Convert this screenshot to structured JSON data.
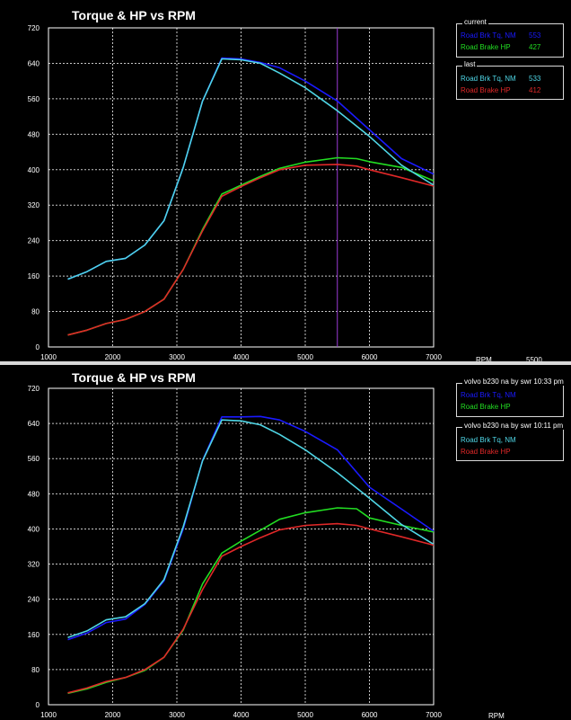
{
  "chart_data": [
    {
      "type": "line",
      "title": "Torque & HP vs RPM",
      "xlabel": "RPM",
      "cursor_rpm": 5500,
      "cursor_readout": "5500",
      "xlim": [
        1000,
        7000
      ],
      "ylim": [
        0,
        720
      ],
      "x_ticks": [
        1000,
        2000,
        3000,
        4000,
        5000,
        6000,
        7000
      ],
      "y_ticks": [
        0,
        80,
        160,
        240,
        320,
        400,
        480,
        560,
        640,
        720
      ],
      "grid": true,
      "legend": {
        "placement": "right",
        "groups": [
          {
            "title": "current",
            "entries": [
              {
                "label": "Road Brk Tq, NM",
                "value": "553",
                "color": "#1a1aff"
              },
              {
                "label": "Road Brake HP",
                "value": "427",
                "color": "#22dd22"
              }
            ]
          },
          {
            "title": "last",
            "entries": [
              {
                "label": "Road Brk Tq, NM",
                "value": "533",
                "color": "#4fd6e6"
              },
              {
                "label": "Road Brake HP",
                "value": "412",
                "color": "#e02828"
              }
            ]
          }
        ]
      },
      "series": [
        {
          "name": "Road Brk Tq, NM",
          "group": "current",
          "color": "#1a1aff",
          "x": [
            1300,
            1600,
            1900,
            2200,
            2500,
            2800,
            3100,
            3400,
            3700,
            4000,
            4300,
            4600,
            5000,
            5500,
            6000,
            6500,
            7000
          ],
          "y": [
            153,
            170,
            193,
            200,
            230,
            285,
            405,
            555,
            652,
            650,
            642,
            630,
            600,
            555,
            490,
            425,
            390
          ]
        },
        {
          "name": "Road Brake HP",
          "group": "current",
          "color": "#22dd22",
          "x": [
            1300,
            1600,
            1900,
            2200,
            2500,
            2800,
            3100,
            3400,
            3700,
            4000,
            4300,
            4600,
            5000,
            5500,
            5800,
            6000,
            6500,
            7000
          ],
          "y": [
            27,
            38,
            53,
            62,
            80,
            108,
            175,
            265,
            345,
            365,
            385,
            403,
            417,
            427,
            425,
            418,
            405,
            375
          ]
        },
        {
          "name": "Road Brk Tq, NM",
          "group": "last",
          "color": "#4fd6e6",
          "x": [
            1300,
            1600,
            1900,
            2200,
            2500,
            2800,
            3100,
            3400,
            3700,
            4000,
            4300,
            4600,
            5000,
            5500,
            6000,
            6500,
            7000
          ],
          "y": [
            153,
            170,
            193,
            200,
            230,
            285,
            405,
            555,
            650,
            648,
            640,
            618,
            585,
            533,
            475,
            410,
            365
          ]
        },
        {
          "name": "Road Brake HP",
          "group": "last",
          "color": "#e02828",
          "x": [
            1300,
            1600,
            1900,
            2200,
            2500,
            2800,
            3100,
            3400,
            3700,
            4000,
            4300,
            4600,
            5000,
            5500,
            5800,
            6000,
            6500,
            7000
          ],
          "y": [
            27,
            38,
            53,
            62,
            80,
            108,
            175,
            262,
            340,
            362,
            382,
            400,
            410,
            412,
            408,
            400,
            382,
            363
          ]
        }
      ]
    },
    {
      "type": "line",
      "title": "Torque & HP vs RPM",
      "xlabel": "RPM",
      "xlim": [
        1000,
        7000
      ],
      "ylim": [
        0,
        720
      ],
      "x_ticks": [
        1000,
        2000,
        3000,
        4000,
        5000,
        6000,
        7000
      ],
      "y_ticks": [
        0,
        80,
        160,
        240,
        320,
        400,
        480,
        560,
        640,
        720
      ],
      "grid": true,
      "legend": {
        "placement": "right",
        "groups": [
          {
            "title": "volvo b230 na by swr 10:33 pm",
            "entries": [
              {
                "label": "Road Brk Tq, NM",
                "color": "#1a1aff"
              },
              {
                "label": "Road Brake HP",
                "color": "#22dd22"
              }
            ]
          },
          {
            "title": "volvo b230 na by swr 10:11 pm",
            "entries": [
              {
                "label": "Road Brk Tq, NM",
                "color": "#4fd6e6"
              },
              {
                "label": "Road Brake HP",
                "color": "#e02828"
              }
            ]
          }
        ]
      },
      "series": [
        {
          "name": "Road Brk Tq, NM",
          "group": "volvo b230 na by swr 10:33 pm",
          "color": "#1a1aff",
          "x": [
            1300,
            1600,
            1900,
            2200,
            2500,
            2800,
            3100,
            3400,
            3700,
            4000,
            4300,
            4600,
            5000,
            5500,
            6000,
            6500,
            7000
          ],
          "y": [
            148,
            163,
            187,
            195,
            228,
            282,
            400,
            556,
            655,
            655,
            656,
            648,
            622,
            580,
            495,
            445,
            395
          ]
        },
        {
          "name": "Road Brake HP",
          "group": "volvo b230 na by swr 10:33 pm",
          "color": "#22dd22",
          "x": [
            1300,
            1600,
            1900,
            2200,
            2500,
            2800,
            3100,
            3400,
            3700,
            4000,
            4300,
            4600,
            5000,
            5500,
            5800,
            6000,
            6500,
            7000
          ],
          "y": [
            26,
            36,
            51,
            62,
            78,
            108,
            170,
            275,
            345,
            372,
            397,
            422,
            437,
            448,
            446,
            425,
            408,
            393
          ]
        },
        {
          "name": "Road Brk Tq, NM",
          "group": "volvo b230 na by swr 10:11 pm",
          "color": "#4fd6e6",
          "x": [
            1300,
            1600,
            1900,
            2200,
            2500,
            2800,
            3100,
            3400,
            3700,
            4000,
            4300,
            4600,
            5000,
            5500,
            6000,
            6500,
            7000
          ],
          "y": [
            153,
            168,
            193,
            200,
            230,
            285,
            405,
            555,
            648,
            646,
            637,
            615,
            580,
            528,
            470,
            410,
            365
          ]
        },
        {
          "name": "Road Brake HP",
          "group": "volvo b230 na by swr 10:11 pm",
          "color": "#e02828",
          "x": [
            1300,
            1600,
            1900,
            2200,
            2500,
            2800,
            3100,
            3400,
            3700,
            4000,
            4300,
            4600,
            5000,
            5500,
            5800,
            6000,
            6500,
            7000
          ],
          "y": [
            27,
            38,
            53,
            62,
            80,
            108,
            172,
            262,
            338,
            360,
            380,
            398,
            408,
            412,
            408,
            400,
            382,
            363
          ]
        }
      ]
    }
  ]
}
